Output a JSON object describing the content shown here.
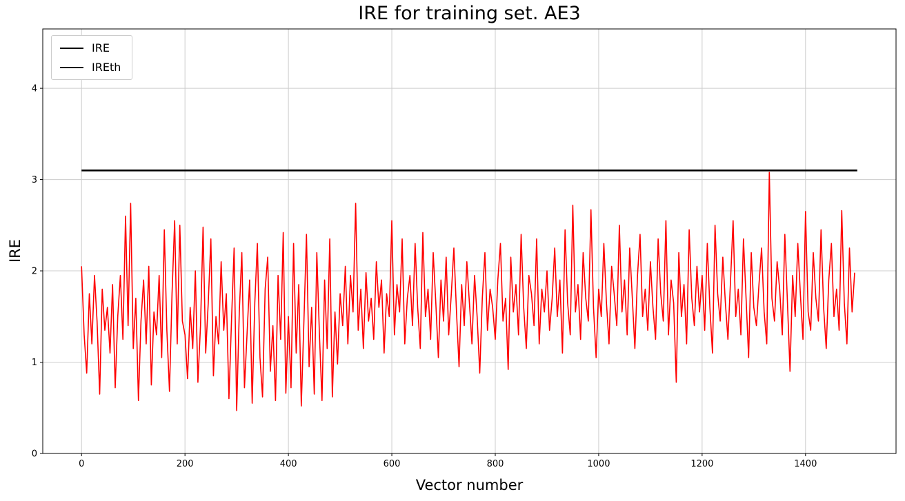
{
  "chart_data": {
    "type": "line",
    "title": "IRE for training set. AE3",
    "xlabel": "Vector number",
    "ylabel": "IRE",
    "xlim": [
      -75,
      1575
    ],
    "ylim": [
      0,
      4.65
    ],
    "xticks": [
      0,
      200,
      400,
      600,
      800,
      1000,
      1200,
      1400
    ],
    "yticks": [
      0,
      1,
      2,
      3,
      4
    ],
    "grid": true,
    "grid_color": "#cccccc",
    "frame_color": "#000000",
    "background": "#ffffff",
    "legend_position": "upper left",
    "series": [
      {
        "name": "IRE",
        "color": "#ff0000",
        "linewidth": 1.6,
        "x_start": 0,
        "x_step": 5,
        "values": [
          2.05,
          1.3,
          0.88,
          1.75,
          1.2,
          1.95,
          1.45,
          0.65,
          1.8,
          1.35,
          1.6,
          1.1,
          1.85,
          0.72,
          1.5,
          1.95,
          1.25,
          2.6,
          1.4,
          2.74,
          1.15,
          1.7,
          0.58,
          1.45,
          1.9,
          1.2,
          2.05,
          0.75,
          1.55,
          1.3,
          1.95,
          1.05,
          2.45,
          1.35,
          0.68,
          1.75,
          2.55,
          1.2,
          2.5,
          1.45,
          1.3,
          0.82,
          1.6,
          1.15,
          2.0,
          0.78,
          1.4,
          2.48,
          1.1,
          1.65,
          2.35,
          0.85,
          1.5,
          1.2,
          2.1,
          1.35,
          1.75,
          0.6,
          1.45,
          2.25,
          0.47,
          1.55,
          2.2,
          0.72,
          1.3,
          1.9,
          0.55,
          1.65,
          2.3,
          1.05,
          0.62,
          1.8,
          2.15,
          0.9,
          1.4,
          0.58,
          1.95,
          1.25,
          2.42,
          0.66,
          1.5,
          0.72,
          2.3,
          1.1,
          1.85,
          0.52,
          1.45,
          2.4,
          0.95,
          1.6,
          0.65,
          2.2,
          1.3,
          0.58,
          1.9,
          1.15,
          2.35,
          0.62,
          1.55,
          0.98,
          1.75,
          1.4,
          2.05,
          1.2,
          1.95,
          1.55,
          2.74,
          1.35,
          1.8,
          1.15,
          1.98,
          1.45,
          1.7,
          1.25,
          2.1,
          1.6,
          1.9,
          1.1,
          1.75,
          1.5,
          2.55,
          1.3,
          1.85,
          1.55,
          2.35,
          1.2,
          1.7,
          1.95,
          1.4,
          2.3,
          1.6,
          1.15,
          2.42,
          1.5,
          1.8,
          1.25,
          2.2,
          1.65,
          1.05,
          1.9,
          1.45,
          2.15,
          1.3,
          1.75,
          2.25,
          1.55,
          0.95,
          1.85,
          1.4,
          2.1,
          1.65,
          1.2,
          1.95,
          1.5,
          0.88,
          1.7,
          2.2,
          1.35,
          1.8,
          1.6,
          1.25,
          1.9,
          2.3,
          1.45,
          1.7,
          0.92,
          2.15,
          1.55,
          1.85,
          1.3,
          2.4,
          1.6,
          1.15,
          1.95,
          1.75,
          1.4,
          2.35,
          1.2,
          1.8,
          1.55,
          2.0,
          1.35,
          1.7,
          2.25,
          1.5,
          1.9,
          1.1,
          2.45,
          1.65,
          1.3,
          2.72,
          1.55,
          1.85,
          1.25,
          2.2,
          1.7,
          1.45,
          2.67,
          1.6,
          1.05,
          1.8,
          1.5,
          2.3,
          1.65,
          1.2,
          2.05,
          1.75,
          1.4,
          2.5,
          1.55,
          1.9,
          1.3,
          2.25,
          1.7,
          1.15,
          1.95,
          2.4,
          1.5,
          1.8,
          1.35,
          2.1,
          1.6,
          1.25,
          2.35,
          1.75,
          1.45,
          2.55,
          1.3,
          1.9,
          1.65,
          0.78,
          2.2,
          1.5,
          1.85,
          1.2,
          2.45,
          1.7,
          1.4,
          2.05,
          1.55,
          1.95,
          1.35,
          2.3,
          1.6,
          1.1,
          2.5,
          1.75,
          1.45,
          2.15,
          1.65,
          1.25,
          1.9,
          2.55,
          1.5,
          1.8,
          1.3,
          2.35,
          1.7,
          1.05,
          2.2,
          1.6,
          1.4,
          1.85,
          2.25,
          1.55,
          1.2,
          3.08,
          1.7,
          1.45,
          2.1,
          1.8,
          1.3,
          2.4,
          1.65,
          0.9,
          1.95,
          1.5,
          2.3,
          1.75,
          1.25,
          2.65,
          1.55,
          1.35,
          2.2,
          1.7,
          1.45,
          2.45,
          1.6,
          1.15,
          1.9,
          2.3,
          1.5,
          1.8,
          1.35,
          2.66,
          1.65,
          1.2,
          2.25,
          1.55,
          1.98
        ]
      },
      {
        "name": "IREth",
        "color": "#000000",
        "linewidth": 2.6,
        "constant": 3.1,
        "x_range": [
          0,
          1500
        ]
      }
    ]
  }
}
